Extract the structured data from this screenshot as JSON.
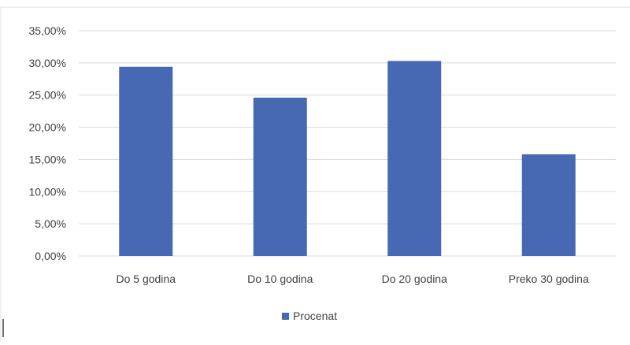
{
  "chart_data": {
    "type": "bar",
    "categories": [
      "Do 5 godina",
      "Do 10 godina",
      "Do 20 godina",
      "Preko 30 godina"
    ],
    "series": [
      {
        "name": "Procenat",
        "values": [
          29.4,
          24.6,
          30.3,
          15.8
        ]
      }
    ],
    "y_ticks": [
      "0,00%",
      "5,00%",
      "10,00%",
      "15,00%",
      "20,00%",
      "25,00%",
      "30,00%",
      "35,00%"
    ],
    "ylim": [
      0,
      35
    ],
    "grid": true,
    "legend_position": "bottom",
    "colors": {
      "bar": "#4768b3",
      "grid": "#d9d9d9",
      "text": "#404040"
    }
  }
}
